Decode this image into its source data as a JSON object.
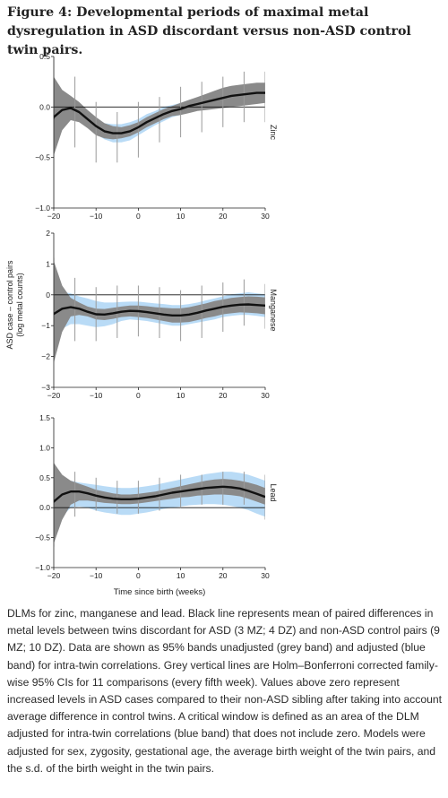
{
  "title": "Figure 4: Developmental periods of maximal metal dysregulation in ASD discordant versus non-ASD control twin pairs.",
  "caption": "DLMs for zinc, manganese and lead. Black line represents mean of paired differences in metal levels between twins discordant for ASD (3 MZ; 4 DZ) and non-ASD control pairs (9 MZ; 10 DZ). Data are shown as 95% bands unadjusted (grey band) and adjusted (blue band) for intra-twin correlations. Grey vertical lines are Holm–Bonferroni corrected family-wise 95% CIs for 11 comparisons (every fifth week). Values above zero represent increased levels in ASD cases compared to their non-ASD sibling after taking into account average difference in control twins. A critical window is defined as an area of the DLM adjusted for intra-twin correlations (blue band) that does not include zero. Models were adjusted for sex, zygosity, gestational age, the average birth weight of the twin pairs, and the s.d. of the birth weight in the twin pairs.",
  "colors": {
    "mean_line": "#111111",
    "unadjusted_band": "#8a8a8a",
    "adjusted_band": "#b9dbf6",
    "ci_lines": "#9a9a9a",
    "zero_line": "#111111"
  },
  "chart_data": [
    {
      "type": "line",
      "panel": "Zinc",
      "series_label": "Zinc",
      "ylabel": "ASD case – control pairs (log metal counts)",
      "xlabel": "",
      "xlim": [
        -20,
        30
      ],
      "ylim": [
        -1.0,
        0.5
      ],
      "xticks": [
        "−20",
        "−10",
        "0",
        "10",
        "20",
        "30"
      ],
      "yticks": [
        "−1.0",
        "−0.5",
        "0.0",
        "0.5"
      ],
      "x": [
        -21,
        -20,
        -18,
        -16,
        -14,
        -12,
        -10,
        -8,
        -6,
        -4,
        -2,
        0,
        2,
        4,
        6,
        8,
        10,
        12,
        14,
        16,
        18,
        20,
        22,
        24,
        26,
        28,
        30
      ],
      "mean": [
        -0.22,
        -0.1,
        -0.03,
        -0.01,
        -0.05,
        -0.12,
        -0.19,
        -0.24,
        -0.26,
        -0.26,
        -0.24,
        -0.2,
        -0.15,
        -0.11,
        -0.07,
        -0.04,
        -0.02,
        0.01,
        0.03,
        0.05,
        0.07,
        0.09,
        0.11,
        0.12,
        0.13,
        0.14,
        0.14
      ],
      "unadjusted_lower": [
        -0.85,
        -0.48,
        -0.23,
        -0.13,
        -0.15,
        -0.21,
        -0.28,
        -0.31,
        -0.32,
        -0.31,
        -0.29,
        -0.25,
        -0.2,
        -0.16,
        -0.12,
        -0.09,
        -0.08,
        -0.06,
        -0.04,
        -0.03,
        -0.02,
        -0.01,
        0.0,
        0.01,
        0.02,
        0.03,
        0.04
      ],
      "unadjusted_upper": [
        0.45,
        0.3,
        0.17,
        0.11,
        0.05,
        -0.03,
        -0.1,
        -0.16,
        -0.19,
        -0.2,
        -0.18,
        -0.15,
        -0.1,
        -0.06,
        -0.02,
        0.01,
        0.04,
        0.07,
        0.1,
        0.13,
        0.16,
        0.19,
        0.21,
        0.22,
        0.23,
        0.24,
        0.24
      ],
      "adjusted_lower": [
        -0.28,
        -0.18,
        -0.11,
        -0.09,
        -0.12,
        -0.2,
        -0.27,
        -0.32,
        -0.35,
        -0.35,
        -0.33,
        -0.28,
        -0.23,
        -0.18,
        -0.14,
        -0.1,
        -0.08,
        -0.05,
        -0.03,
        -0.01,
        0.0,
        0.02,
        0.03,
        0.04,
        0.05,
        0.06,
        0.06
      ],
      "adjusted_upper": [
        -0.16,
        -0.02,
        0.05,
        0.07,
        0.02,
        -0.04,
        -0.11,
        -0.16,
        -0.17,
        -0.17,
        -0.15,
        -0.12,
        -0.07,
        -0.04,
        0.0,
        0.02,
        0.04,
        0.07,
        0.09,
        0.11,
        0.14,
        0.16,
        0.19,
        0.2,
        0.21,
        0.22,
        0.22
      ],
      "ci_x": [
        -20,
        -15,
        -10,
        -5,
        0,
        5,
        10,
        15,
        20,
        25,
        30
      ],
      "ci_lower": [
        -1.0,
        -0.4,
        -0.55,
        -0.55,
        -0.5,
        -0.35,
        -0.3,
        -0.25,
        -0.2,
        -0.15,
        -0.15
      ],
      "ci_upper": [
        0.5,
        0.3,
        0.05,
        -0.05,
        0.05,
        0.1,
        0.2,
        0.25,
        0.3,
        0.35,
        0.35
      ]
    },
    {
      "type": "line",
      "panel": "Manganese",
      "series_label": "Manganese",
      "ylabel": "ASD case – control pairs (log metal counts)",
      "xlabel": "",
      "xlim": [
        -20,
        30
      ],
      "ylim": [
        -3,
        2
      ],
      "xticks": [
        "−20",
        "−10",
        "0",
        "10",
        "20",
        "30"
      ],
      "yticks": [
        "−3",
        "−2",
        "−1",
        "0",
        "1",
        "2"
      ],
      "x": [
        -21,
        -20,
        -18,
        -16,
        -14,
        -12,
        -10,
        -8,
        -6,
        -4,
        -2,
        0,
        2,
        4,
        6,
        8,
        10,
        12,
        14,
        16,
        18,
        20,
        22,
        24,
        26,
        28,
        30
      ],
      "mean": [
        -0.75,
        -0.62,
        -0.45,
        -0.4,
        -0.45,
        -0.55,
        -0.63,
        -0.64,
        -0.6,
        -0.55,
        -0.52,
        -0.53,
        -0.56,
        -0.6,
        -0.64,
        -0.67,
        -0.67,
        -0.64,
        -0.58,
        -0.51,
        -0.45,
        -0.39,
        -0.35,
        -0.32,
        -0.31,
        -0.33,
        -0.35
      ],
      "unadjusted_lower": [
        -3.0,
        -2.2,
        -1.2,
        -0.7,
        -0.65,
        -0.7,
        -0.8,
        -0.82,
        -0.78,
        -0.72,
        -0.7,
        -0.72,
        -0.75,
        -0.8,
        -0.85,
        -0.9,
        -0.9,
        -0.88,
        -0.82,
        -0.75,
        -0.7,
        -0.63,
        -0.6,
        -0.57,
        -0.58,
        -0.6,
        -0.63
      ],
      "unadjusted_upper": [
        1.9,
        1.1,
        0.3,
        -0.1,
        -0.25,
        -0.38,
        -0.45,
        -0.46,
        -0.42,
        -0.38,
        -0.35,
        -0.35,
        -0.37,
        -0.4,
        -0.42,
        -0.44,
        -0.44,
        -0.4,
        -0.34,
        -0.28,
        -0.2,
        -0.15,
        -0.1,
        -0.07,
        -0.05,
        -0.06,
        -0.08
      ],
      "adjusted_lower": [
        -1.6,
        -1.4,
        -1.1,
        -0.95,
        -0.95,
        -1.0,
        -1.05,
        -1.02,
        -0.95,
        -0.85,
        -0.8,
        -0.82,
        -0.85,
        -0.9,
        -0.95,
        -1.0,
        -1.0,
        -0.95,
        -0.9,
        -0.85,
        -0.8,
        -0.72,
        -0.68,
        -0.65,
        -0.65,
        -0.68,
        -0.72
      ],
      "adjusted_upper": [
        0.2,
        0.18,
        0.1,
        0.05,
        -0.05,
        -0.12,
        -0.2,
        -0.25,
        -0.25,
        -0.23,
        -0.22,
        -0.22,
        -0.25,
        -0.28,
        -0.3,
        -0.33,
        -0.33,
        -0.3,
        -0.25,
        -0.18,
        -0.12,
        -0.05,
        0.02,
        0.05,
        0.08,
        0.05,
        0.02
      ],
      "ci_x": [
        -20,
        -15,
        -10,
        -5,
        0,
        5,
        10,
        15,
        20,
        25,
        30
      ],
      "ci_lower": [
        -1.8,
        -1.5,
        -1.5,
        -1.4,
        -1.35,
        -1.4,
        -1.5,
        -1.4,
        -1.2,
        -1.0,
        -1.1
      ],
      "ci_upper": [
        1.2,
        0.55,
        0.25,
        0.3,
        0.3,
        0.25,
        0.15,
        0.3,
        0.4,
        0.5,
        0.35
      ]
    },
    {
      "type": "line",
      "panel": "Lead",
      "series_label": "Lead",
      "ylabel": "ASD case – control pairs (log metal counts)",
      "xlabel": "Time since birth (weeks)",
      "xlim": [
        -20,
        30
      ],
      "ylim": [
        -1.0,
        1.5
      ],
      "xticks": [
        "−20",
        "−10",
        "0",
        "10",
        "20",
        "30"
      ],
      "yticks": [
        "−1.0",
        "−0.5",
        "0.0",
        "0.5",
        "1.0",
        "1.5"
      ],
      "x": [
        -21,
        -20,
        -18,
        -16,
        -14,
        -12,
        -10,
        -8,
        -6,
        -4,
        -2,
        0,
        2,
        4,
        6,
        8,
        10,
        12,
        14,
        16,
        18,
        20,
        22,
        24,
        26,
        28,
        30
      ],
      "mean": [
        0.02,
        0.1,
        0.22,
        0.27,
        0.27,
        0.24,
        0.2,
        0.17,
        0.15,
        0.14,
        0.14,
        0.15,
        0.17,
        0.19,
        0.22,
        0.25,
        0.27,
        0.29,
        0.31,
        0.33,
        0.34,
        0.35,
        0.34,
        0.32,
        0.28,
        0.23,
        0.18
      ],
      "unadjusted_lower": [
        -0.9,
        -0.6,
        -0.2,
        0.05,
        0.12,
        0.12,
        0.1,
        0.08,
        0.07,
        0.06,
        0.06,
        0.07,
        0.09,
        0.11,
        0.13,
        0.15,
        0.17,
        0.18,
        0.2,
        0.21,
        0.22,
        0.22,
        0.21,
        0.19,
        0.15,
        0.1,
        0.05
      ],
      "unadjusted_upper": [
        0.9,
        0.75,
        0.55,
        0.45,
        0.4,
        0.35,
        0.3,
        0.27,
        0.24,
        0.22,
        0.22,
        0.23,
        0.25,
        0.27,
        0.3,
        0.33,
        0.36,
        0.39,
        0.42,
        0.45,
        0.47,
        0.48,
        0.47,
        0.45,
        0.42,
        0.38,
        0.33
      ],
      "adjusted_lower": [
        -0.45,
        -0.35,
        -0.15,
        0.0,
        0.02,
        0.0,
        -0.05,
        -0.08,
        -0.1,
        -0.12,
        -0.12,
        -0.1,
        -0.08,
        -0.05,
        -0.02,
        0.0,
        0.02,
        0.04,
        0.05,
        0.06,
        0.06,
        0.05,
        0.03,
        0.0,
        -0.04,
        -0.1,
        -0.15
      ],
      "adjusted_upper": [
        0.5,
        0.45,
        0.45,
        0.45,
        0.42,
        0.4,
        0.38,
        0.36,
        0.34,
        0.33,
        0.33,
        0.34,
        0.36,
        0.38,
        0.41,
        0.44,
        0.47,
        0.5,
        0.53,
        0.56,
        0.58,
        0.6,
        0.6,
        0.58,
        0.55,
        0.5,
        0.45
      ],
      "ci_x": [
        -20,
        -15,
        -10,
        -5,
        0,
        5,
        10,
        15,
        20,
        25,
        30
      ],
      "ci_lower": [
        -0.65,
        -0.15,
        -0.05,
        -0.1,
        -0.1,
        -0.05,
        0.0,
        0.05,
        0.05,
        0.05,
        -0.2
      ],
      "ci_upper": [
        0.7,
        0.6,
        0.5,
        0.45,
        0.45,
        0.5,
        0.55,
        0.55,
        0.6,
        0.6,
        0.55
      ]
    }
  ]
}
